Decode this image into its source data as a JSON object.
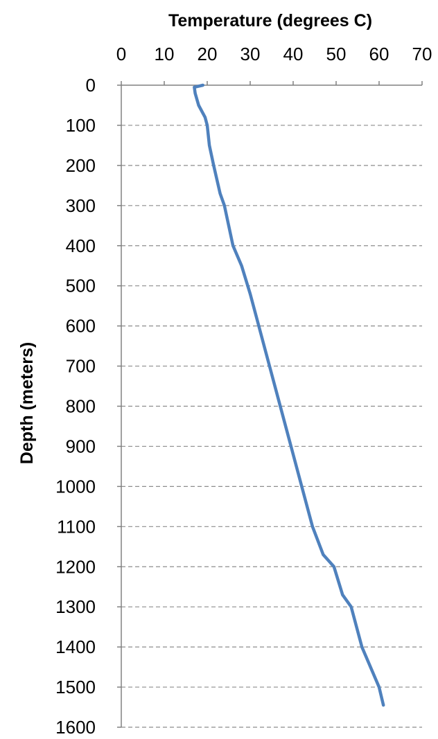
{
  "chart_data": {
    "type": "line",
    "title": "",
    "xlabel": "Temperature (degrees C)",
    "ylabel": "Depth (meters)",
    "xlim": [
      0,
      70
    ],
    "ylim": [
      0,
      1600
    ],
    "y_inverted": true,
    "x_axis_position": "top",
    "x_ticks": [
      "0",
      "10",
      "20",
      "30",
      "40",
      "50",
      "60",
      "70"
    ],
    "y_ticks": [
      "0",
      "100",
      "200",
      "300",
      "400",
      "500",
      "600",
      "700",
      "800",
      "900",
      "1000",
      "1100",
      "1200",
      "1300",
      "1400",
      "1500",
      "1600"
    ],
    "grid": "horizontal dashed",
    "legend": "none",
    "series": [
      {
        "color": "#4f81bd",
        "x": [
          19,
          17,
          17.2,
          18,
          19.5,
          20,
          20.5,
          21.5,
          23,
          24,
          25,
          26,
          28,
          30,
          32,
          34.5,
          37,
          39.5,
          42,
          44.5,
          47,
          49.5,
          51.5,
          53.5,
          56,
          58,
          60,
          61
        ],
        "y": [
          0,
          5,
          20,
          50,
          80,
          100,
          150,
          200,
          270,
          300,
          350,
          400,
          450,
          520,
          600,
          700,
          800,
          900,
          1000,
          1100,
          1170,
          1200,
          1270,
          1300,
          1400,
          1450,
          1500,
          1545
        ]
      }
    ]
  }
}
